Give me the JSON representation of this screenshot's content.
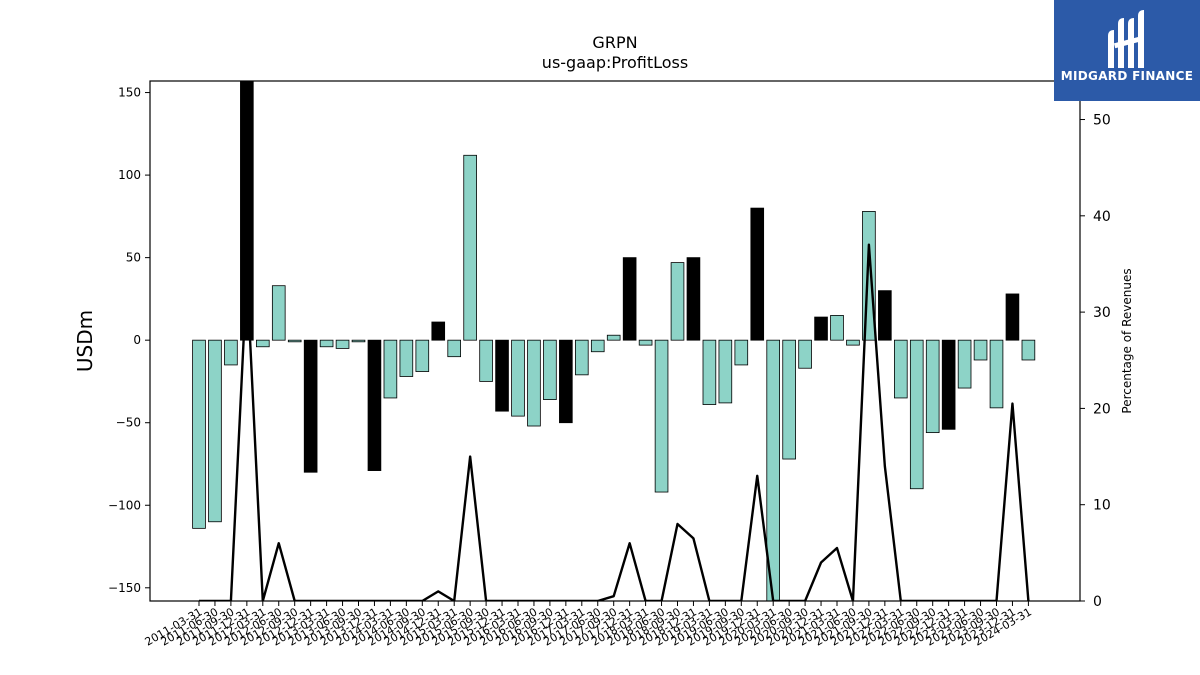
{
  "chart_data": {
    "type": "bar",
    "title": "GRPN",
    "subtitle": "us-gaap:ProfitLoss",
    "ylabel": "USDm",
    "y2label": "Percentage of Revenues",
    "ylim": [
      -158,
      157
    ],
    "y2lim": [
      0,
      54
    ],
    "yticks": [
      -150,
      -100,
      -50,
      0,
      50,
      100,
      150
    ],
    "y2ticks": [
      0,
      10,
      20,
      30,
      40,
      50
    ],
    "colors": {
      "bar_default": "#8dd3c7",
      "bar_highlight": "#000000",
      "line": "#000000",
      "edge": "#000000"
    },
    "categories": [
      "2011-03-31",
      "2011-06-30",
      "2011-09-30",
      "2011-12-31",
      "2012-03-31",
      "2012-06-30",
      "2012-09-30",
      "2012-12-31",
      "2013-03-31",
      "2013-06-30",
      "2013-09-30",
      "2013-12-31",
      "2014-03-31",
      "2014-06-30",
      "2014-09-30",
      "2014-12-31",
      "2015-03-31",
      "2015-06-30",
      "2015-09-30",
      "2015-12-31",
      "2016-03-31",
      "2016-06-30",
      "2016-09-30",
      "2016-12-31",
      "2017-03-31",
      "2017-06-30",
      "2017-09-30",
      "2017-12-31",
      "2018-03-31",
      "2018-06-30",
      "2018-09-30",
      "2018-12-31",
      "2019-03-31",
      "2019-06-30",
      "2019-09-30",
      "2019-12-31",
      "2020-03-31",
      "2020-06-30",
      "2020-09-30",
      "2020-12-31",
      "2021-03-31",
      "2021-06-30",
      "2021-09-30",
      "2021-12-31",
      "2022-03-31",
      "2022-06-30",
      "2022-09-30",
      "2022-12-31",
      "2023-03-31",
      "2023-06-30",
      "2023-09-30",
      "2023-12-31",
      "2024-03-31"
    ],
    "tick_labels": [
      "2011-03-31",
      "2011-06-30",
      "2011-09-30",
      "2011-12-31",
      "2012-03-31",
      "2012-06-30",
      "2012-09-30",
      "2012-12-31",
      "2013-03-31",
      "2013-06-30",
      "2013-09-30",
      "2013-12-31",
      "2014-03-31",
      "2014-06-30",
      "2014-09-30",
      "2014-12-31",
      "2015-03-31",
      "2015-06-30",
      "2015-09-30",
      "2015-12-31",
      "2016-03-31",
      "2016-06-30",
      "2016-09-30",
      "2016-12-31",
      "2017-03-31",
      "2017-06-30",
      "2017-09-30",
      "2017-12-31",
      "2018-03-31",
      "2018-06-30",
      "2018-09-30",
      "2018-12-31",
      "2019-03-31",
      "2019-06-30",
      "2019-09-30",
      "2019-12-31",
      "2020-03-31",
      "2020-06-30",
      "2020-09-30",
      "2020-12-31",
      "2021-03-31",
      "2021-06-30",
      "2021-09-30",
      "2021-12-31",
      "2022-03-31",
      "2022-06-30",
      "2022-09-30",
      "2022-12-31",
      "2023-03-31",
      "2023-06-30",
      "2023-09-30",
      "2023-12-31",
      "2024-03-31"
    ],
    "values": [
      -114,
      -110,
      -15,
      170,
      -4,
      33,
      -1,
      -80,
      -4,
      -5,
      -1,
      -79,
      -35,
      -22,
      -19,
      11,
      -10,
      112,
      -25,
      -43,
      -46,
      -52,
      -36,
      -50,
      -21,
      -7,
      3,
      50,
      -3,
      -92,
      47,
      50,
      -39,
      -38,
      -15,
      80,
      -170,
      -72,
      -17,
      14,
      15,
      -3,
      78,
      30,
      -35,
      -90,
      -56,
      -54,
      -29,
      -12,
      -41,
      28,
      -12
    ],
    "highlight": [
      false,
      false,
      false,
      true,
      false,
      false,
      false,
      true,
      false,
      false,
      false,
      true,
      false,
      false,
      false,
      true,
      false,
      false,
      false,
      true,
      false,
      false,
      false,
      true,
      false,
      false,
      false,
      true,
      false,
      false,
      false,
      true,
      false,
      false,
      false,
      true,
      false,
      false,
      false,
      true,
      false,
      false,
      false,
      true,
      false,
      false,
      false,
      true,
      false,
      false,
      false,
      true,
      false
    ],
    "pct_of_revenues": [
      0,
      0,
      0,
      34,
      0,
      6,
      0,
      0,
      0,
      0,
      0,
      0,
      0,
      0,
      0,
      1,
      0,
      15,
      0,
      0,
      0,
      0,
      0,
      0,
      0,
      0,
      0.5,
      6,
      0,
      0,
      8,
      6.5,
      0,
      0,
      0,
      13,
      0,
      0,
      0,
      4,
      5.5,
      0,
      37,
      14,
      0,
      0,
      0,
      0,
      0,
      0,
      0,
      20.5,
      0
    ],
    "grid": false
  },
  "logo": {
    "text": "MIDGARD FINANCE",
    "color": "#2c5aa8"
  }
}
